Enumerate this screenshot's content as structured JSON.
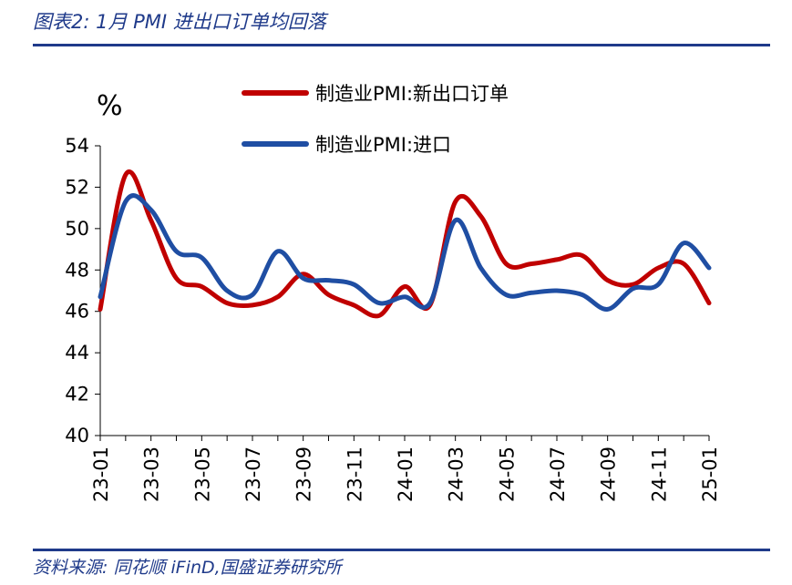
{
  "header": {
    "title": "图表2:  1月 PMI 进出口订单均回落"
  },
  "footer": {
    "source": "资料来源:  同花顺 iFinD,国盛证券研究所"
  },
  "colors": {
    "series_new_export": "#c00000",
    "series_import": "#1f4ea3",
    "rule": "#1f3a8a"
  },
  "chart_data": {
    "type": "line",
    "ylabel": "%",
    "ylim": [
      40,
      54
    ],
    "yticks": [
      40,
      42,
      44,
      46,
      48,
      50,
      52,
      54
    ],
    "x": [
      "23-01",
      "23-02",
      "23-03",
      "23-04",
      "23-05",
      "23-06",
      "23-07",
      "23-08",
      "23-09",
      "23-10",
      "23-11",
      "23-12",
      "24-01",
      "24-02",
      "24-03",
      "24-04",
      "24-05",
      "24-06",
      "24-07",
      "24-08",
      "24-09",
      "24-10",
      "24-11",
      "24-12",
      "25-01"
    ],
    "xtick_labels": [
      "23-01",
      "23-03",
      "23-05",
      "23-07",
      "23-09",
      "23-11",
      "24-01",
      "24-03",
      "24-05",
      "24-07",
      "24-09",
      "24-11",
      "25-01"
    ],
    "legend_position": "top-right",
    "grid": false,
    "series": [
      {
        "name": "制造业PMI:新出口订单",
        "color": "#c00000",
        "values": [
          46.1,
          52.6,
          50.4,
          47.6,
          47.2,
          46.4,
          46.3,
          46.7,
          47.8,
          46.8,
          46.3,
          45.8,
          47.2,
          46.3,
          51.3,
          50.6,
          48.3,
          48.3,
          48.5,
          48.7,
          47.5,
          47.3,
          48.1,
          48.3,
          46.4
        ]
      },
      {
        "name": "制造业PMI:进口",
        "color": "#1f4ea3",
        "values": [
          46.7,
          51.3,
          50.9,
          48.9,
          48.6,
          47.0,
          46.8,
          48.9,
          47.6,
          47.5,
          47.3,
          46.4,
          46.7,
          46.4,
          50.4,
          48.1,
          46.8,
          46.9,
          47.0,
          46.8,
          46.1,
          47.1,
          47.3,
          49.3,
          48.1
        ]
      }
    ]
  }
}
